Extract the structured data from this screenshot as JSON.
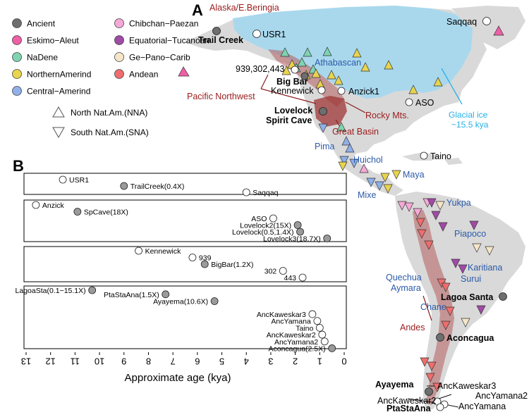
{
  "panel_a": {
    "letter": "A",
    "regions": {
      "alaska": "Alaska/E.Beringia",
      "pacific_nw": "Pacific Northwest",
      "rocky": "Rocky Mts.",
      "great_basin": "Great Basin",
      "andes": "Andes",
      "glacial_1": "Glacial ice",
      "glacial_2": "~15.5 kya"
    },
    "populations": {
      "athabascan": "Athabascan",
      "pima": "Pima",
      "huichol": "Huichol",
      "maya": "Maya",
      "mixe": "Mixe",
      "yukpa": "Yukpa",
      "piapoco": "Piapoco",
      "karitiana": "Karitiana",
      "surui": "Surui",
      "quechua": "Quechua",
      "aymara": "Aymara",
      "chane": "Chane"
    },
    "sites": {
      "trail_creek": "Trail Creek",
      "usr1": "USR1",
      "saqqaq": "Saqqaq",
      "ids": "939,302,443",
      "big_bar": "Big Bar",
      "kennewick": "Kennewick",
      "anzick": "Anzick1",
      "aso": "ASO",
      "lovelock": "Lovelock",
      "spirit_cave": "Spirit Cave",
      "taino": "Taino",
      "lagoa_santa": "Lagoa Santa",
      "aconcagua": "Aconcagua",
      "ayayema": "Ayayema",
      "ancKaweskar3": "AncKaweskar3",
      "ancKaweskar2": "AncKaweskar2",
      "ancYamana2": "AncYamana2",
      "ancYamana": "AncYamana",
      "ptaStaAna": "PtaStaAna"
    }
  },
  "legend": {
    "items": [
      {
        "label": "Ancient",
        "color": "#6e6e6e"
      },
      {
        "label": "Eskimo−Aleut",
        "color": "#ee5fa7"
      },
      {
        "label": "NaDene",
        "color": "#7fd3b1"
      },
      {
        "label": "NorthernAmerind",
        "color": "#e8d44d"
      },
      {
        "label": "Central−Amerind",
        "color": "#8fb0e8"
      },
      {
        "label": "Chibchan−Paezan",
        "color": "#f6a9d6"
      },
      {
        "label": "Equatorial−Tucanoan",
        "color": "#a14aa6"
      },
      {
        "label": "Ge−Pano−Carib",
        "color": "#f5e6c8"
      },
      {
        "label": "Andean",
        "color": "#ef6d6d"
      }
    ],
    "shape_nna": "North Nat.Am.(NNA)",
    "shape_sna": "South Nat.Am.(SNA)"
  },
  "panel_b": {
    "letter": "B",
    "xlabel": "Approximate age (kya)",
    "ticks": [
      "13",
      "12",
      "11",
      "10",
      "9",
      "8",
      "7",
      "6",
      "5",
      "4",
      "3",
      "2",
      "1",
      "0"
    ],
    "groups": [
      {
        "samples": [
          {
            "label": "USR1",
            "age": 11.5,
            "ancient": false
          },
          {
            "label": "TrailCreek(0.4X)",
            "age": 9.0,
            "ancient": true
          },
          {
            "label": "Saqqaq",
            "age": 4.0,
            "ancient": false
          }
        ]
      },
      {
        "samples": [
          {
            "label": "Anzick",
            "age": 12.6,
            "ancient": false
          },
          {
            "label": "SpCave(18X)",
            "age": 10.9,
            "ancient": true
          },
          {
            "label": "ASO",
            "age": 2.9,
            "ancient": false
          },
          {
            "label": "Lovelock2(15X)",
            "age": 1.9,
            "ancient": true
          },
          {
            "label": "Lovelock(0.5,1.4X)",
            "age": 1.8,
            "ancient": true
          },
          {
            "label": "Lovelock3(18.7X)",
            "age": 0.7,
            "ancient": true
          }
        ]
      },
      {
        "samples": [
          {
            "label": "Kennewick",
            "age": 8.4,
            "ancient": false
          },
          {
            "label": "939",
            "age": 6.2,
            "ancient": false
          },
          {
            "label": "BigBar(1.2X)",
            "age": 5.7,
            "ancient": true
          },
          {
            "label": "302",
            "age": 2.5,
            "ancient": false
          },
          {
            "label": "443",
            "age": 1.7,
            "ancient": false
          }
        ]
      },
      {
        "samples": [
          {
            "label": "LagoaSta(0.1−15.1X)",
            "age": 10.3,
            "ancient": true
          },
          {
            "label": "PtaStaAna(1.5X)",
            "age": 7.3,
            "ancient": true
          },
          {
            "label": "Ayayema(10.6X)",
            "age": 5.3,
            "ancient": true
          },
          {
            "label": "AncKaweskar3",
            "age": 1.3,
            "ancient": false
          },
          {
            "label": "AncYamana",
            "age": 1.1,
            "ancient": false
          },
          {
            "label": "Taino",
            "age": 1.0,
            "ancient": false
          },
          {
            "label": "AncKaweskar2",
            "age": 0.9,
            "ancient": false
          },
          {
            "label": "AncYamana2",
            "age": 0.8,
            "ancient": false
          },
          {
            "label": "Aconcagua(2.5X)",
            "age": 0.5,
            "ancient": true
          }
        ]
      }
    ]
  }
}
